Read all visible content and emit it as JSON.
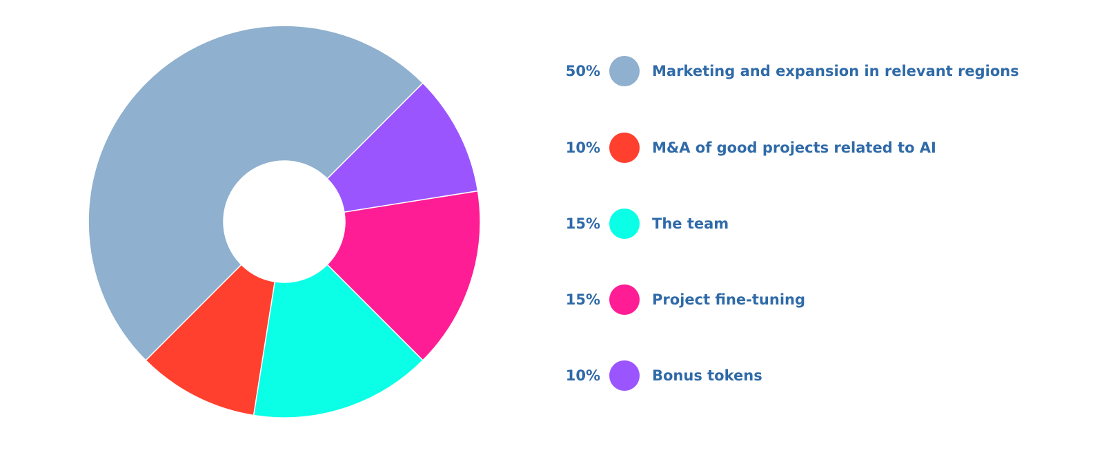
{
  "chart_data": {
    "type": "pie",
    "donut": true,
    "title": "",
    "slices": [
      {
        "label": "Marketing and expansion in relevant regions",
        "value": 50,
        "value_label": "50%",
        "color": "#8fb0ce"
      },
      {
        "label": "M&A of good projects related to AI",
        "value": 10,
        "value_label": "10%",
        "color": "#ff402f"
      },
      {
        "label": "The team",
        "value": 15,
        "value_label": "15%",
        "color": "#0affe6"
      },
      {
        "label": "Project fine-tuning",
        "value": 15,
        "value_label": "15%",
        "color": "#ff1d96"
      },
      {
        "label": "Bonus tokens",
        "value": 10,
        "value_label": "10%",
        "color": "#9b55ff"
      }
    ],
    "legend_position": "right",
    "text_color": "#2f6aa8"
  }
}
